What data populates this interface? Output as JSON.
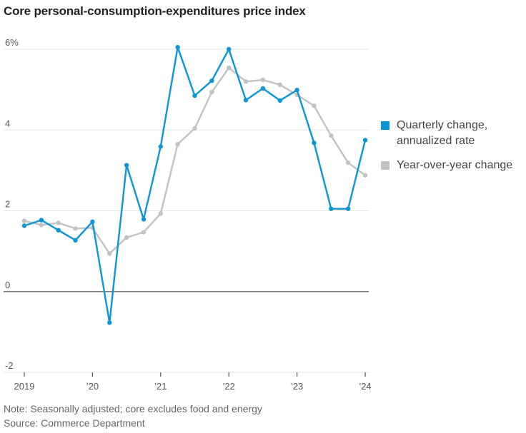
{
  "chart_data": {
    "type": "line",
    "title": "Core personal-consumption-expenditures price index",
    "xlabel": "",
    "ylabel": "",
    "ylim": [
      -2,
      6
    ],
    "y_ticks": [
      {
        "value": 6,
        "label": "6%"
      },
      {
        "value": 4,
        "label": "4"
      },
      {
        "value": 2,
        "label": "2"
      },
      {
        "value": 0,
        "label": "0"
      },
      {
        "value": -2,
        "label": "-2"
      }
    ],
    "x_ticks": [
      {
        "value": 2019,
        "label": "2019"
      },
      {
        "value": 2020,
        "label": "’20"
      },
      {
        "value": 2021,
        "label": "’21"
      },
      {
        "value": 2022,
        "label": "’22"
      },
      {
        "value": 2023,
        "label": "’23"
      },
      {
        "value": 2024,
        "label": "’24"
      }
    ],
    "xlim": [
      2019,
      2024
    ],
    "grid": true,
    "legend_position": "right",
    "x": [
      2019.0,
      2019.25,
      2019.5,
      2019.75,
      2020.0,
      2020.25,
      2020.5,
      2020.75,
      2021.0,
      2021.25,
      2021.5,
      2021.75,
      2022.0,
      2022.25,
      2022.5,
      2022.75,
      2023.0,
      2023.25,
      2023.5,
      2023.75,
      2024.0
    ],
    "series": [
      {
        "name": "Year-over-year change",
        "legend_label": "Year-over-year change",
        "color": "#c2c2c2",
        "values": [
          1.75,
          1.65,
          1.7,
          1.56,
          1.58,
          0.94,
          1.34,
          1.47,
          1.93,
          3.65,
          4.04,
          4.94,
          5.54,
          5.2,
          5.24,
          5.12,
          4.87,
          4.6,
          3.86,
          3.19,
          2.88
        ]
      },
      {
        "name": "Quarterly change, annualized rate",
        "legend_label": "Quarterly change,\nannualized rate",
        "color": "#0a96d8",
        "values": [
          1.63,
          1.77,
          1.52,
          1.27,
          1.73,
          -0.77,
          3.13,
          1.79,
          3.59,
          6.05,
          4.85,
          5.22,
          6.0,
          4.74,
          5.03,
          4.73,
          4.99,
          3.68,
          2.05,
          2.05,
          3.75
        ]
      }
    ]
  },
  "notes": {
    "note": "Note: Seasonally adjusted; core excludes food and energy",
    "source": "Source: Commerce Department"
  },
  "colors": {
    "grid": "#e6e6e6",
    "zero_line": "#7a7a7a",
    "axis_tick": "#555555"
  }
}
